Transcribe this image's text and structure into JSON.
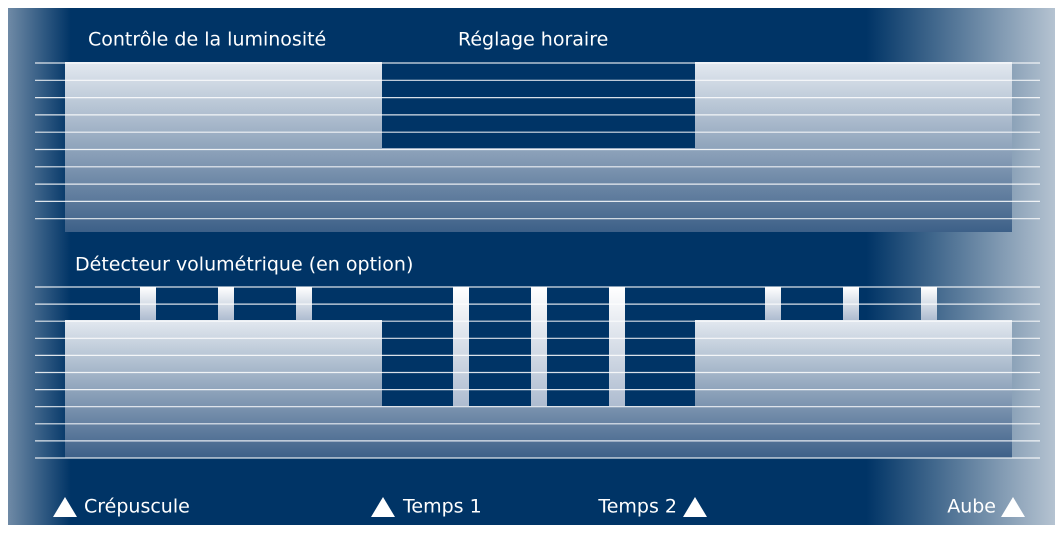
{
  "sections": {
    "brightness": "Contrôle de la luminosité",
    "timer": "Réglage horaire",
    "detector": "Détecteur volumétrique (en option)"
  },
  "markers": [
    "Crépuscule",
    "Temps 1",
    "Temps 2",
    "Aube"
  ]
}
